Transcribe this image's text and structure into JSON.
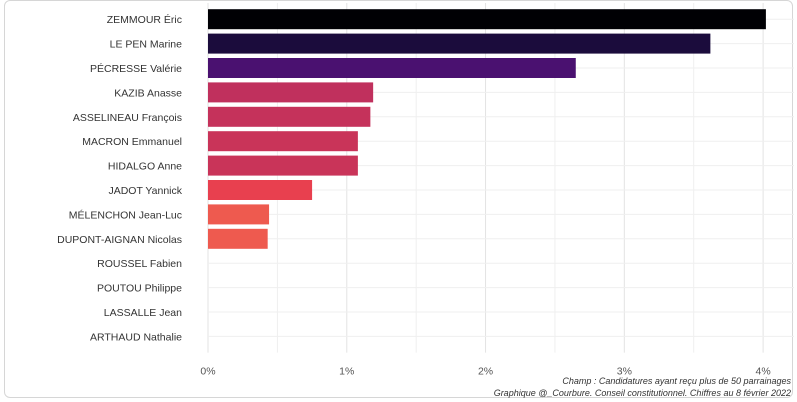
{
  "chart_data": {
    "type": "bar",
    "orientation": "horizontal",
    "categories": [
      "ZEMMOUR Éric",
      "LE PEN Marine",
      "PÉCRESSE Valérie",
      "KAZIB Anasse",
      "ASSELINEAU François",
      "MACRON Emmanuel",
      "HIDALGO Anne",
      "JADOT Yannick",
      "MÉLENCHON Jean-Luc",
      "DUPONT-AIGNAN Nicolas",
      "ROUSSEL Fabien",
      "POUTOU Philippe",
      "LASSALLE Jean",
      "ARTHAUD Nathalie"
    ],
    "values": [
      4.02,
      3.62,
      2.65,
      1.19,
      1.17,
      1.08,
      1.08,
      0.75,
      0.44,
      0.43,
      0.0,
      0.0,
      0.0,
      0.0
    ],
    "colors": [
      "#000004",
      "#1b0c3c",
      "#4a1170",
      "#c0305d",
      "#c5325b",
      "#c93459",
      "#c93459",
      "#e8404f",
      "#ee5a4f",
      "#ee5a4f",
      "#f3784f",
      "#f3784f",
      "#f3784f",
      "#f3784f"
    ],
    "xlim": [
      0,
      4.1
    ],
    "xticks": [
      0,
      1,
      2,
      3,
      4
    ],
    "xtick_labels": [
      "0%",
      "1%",
      "2%",
      "3%",
      "4%"
    ],
    "grid": true,
    "title": "",
    "xlabel": "",
    "ylabel": "",
    "caption_lines": [
      "Champ : Candidatures ayant reçu plus de 50 parrainages",
      "Graphique @_Courbure. Conseil constitutionnel. Chiffres au 8 février 2022"
    ]
  }
}
